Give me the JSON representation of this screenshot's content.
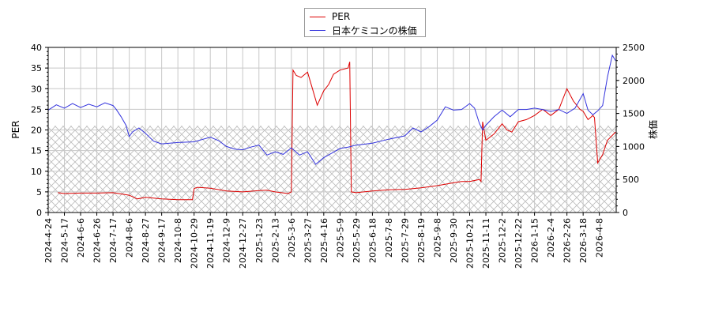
{
  "chart_data": {
    "type": "line",
    "title": "",
    "xlabel": "",
    "ylabel": "PER",
    "ylabel_right": "株価",
    "ylim": [
      0,
      40
    ],
    "ylim_right": [
      0,
      2500
    ],
    "yticks": [
      0,
      5,
      10,
      15,
      20,
      25,
      30,
      35,
      40
    ],
    "yticks_right": [
      0,
      500,
      1000,
      1500,
      2000,
      2500
    ],
    "grid": true,
    "legend_position": "top-center",
    "hatched_band": {
      "from": 0,
      "to": 21,
      "axis": "left"
    },
    "x_tick_labels": [
      "2024-4-24",
      "2024-5-17",
      "2024-6-6",
      "2024-6-26",
      "2024-7-17",
      "2024-8-6",
      "2024-8-27",
      "2024-9-17",
      "2024-10-8",
      "2024-10-29",
      "2024-11-19",
      "2024-12-9",
      "2024-12-27",
      "2025-1-23",
      "2025-2-13",
      "2025-3-6",
      "2025-3-27",
      "2025-4-16",
      "2025-5-9",
      "2025-5-29",
      "2025-6-18",
      "2025-7-8",
      "2025-7-29",
      "2025-8-19",
      "2025-9-8",
      "2025-9-30",
      "2025-10-21",
      "2025-11-11",
      "2025-12-2",
      "2025-12-22",
      "2026-1-15",
      "2026-2-4",
      "2026-2-26",
      "2026-3-18",
      "2026-4-8"
    ],
    "series": [
      {
        "name": "PER",
        "color": "#dd0000",
        "axis": "left",
        "x_index": [
          0.6,
          1,
          2,
          3,
          4,
          4.5,
          5,
          5.5,
          6,
          7,
          8,
          8.9,
          9,
          9.2,
          10,
          11,
          12,
          13,
          13.5,
          14,
          14.8,
          15,
          15.1,
          15.3,
          15.6,
          16,
          16.3,
          16.6,
          17,
          17.3,
          17.6,
          18,
          18.5,
          18.6,
          18.7,
          19,
          20,
          21,
          22,
          23,
          24,
          25,
          25.5,
          26,
          26.6,
          26.7,
          26.8,
          27,
          27.5,
          28,
          28.3,
          28.6,
          29,
          29.5,
          30,
          30.5,
          31,
          31.5,
          32,
          32.4,
          32.8,
          33,
          33.3,
          33.6,
          33.7,
          33.9,
          34.2,
          34.5,
          35
        ],
        "values": [
          4.8,
          4.6,
          4.7,
          4.7,
          4.8,
          4.5,
          4.2,
          3.3,
          3.7,
          3.3,
          3.1,
          3.1,
          5.8,
          6.1,
          5.9,
          5.2,
          5.0,
          5.3,
          5.4,
          5.0,
          4.6,
          5.0,
          34.5,
          33.2,
          32.7,
          34.0,
          30.0,
          26.0,
          29.5,
          31.0,
          33.5,
          34.5,
          35.0,
          36.5,
          5.0,
          4.8,
          5.2,
          5.5,
          5.6,
          6.0,
          6.5,
          7.2,
          7.5,
          7.5,
          8.0,
          7.5,
          22.0,
          17.5,
          19.0,
          21.5,
          20.0,
          19.5,
          22.0,
          22.5,
          23.5,
          25.0,
          23.5,
          25.0,
          30.0,
          27.0,
          25.0,
          24.5,
          22.5,
          23.5,
          23.0,
          12.0,
          14.0,
          17.5,
          19.5
        ]
      },
      {
        "name": "日本ケミコンの株価",
        "color": "#3333dd",
        "axis": "right",
        "x_index": [
          0,
          0.5,
          1,
          1.5,
          2,
          2.5,
          3,
          3.5,
          4,
          4.2,
          4.5,
          4.8,
          5,
          5.2,
          5.6,
          6,
          6.5,
          7,
          8,
          9,
          10,
          10.5,
          11,
          11.5,
          12,
          12.5,
          13,
          13.5,
          14,
          14.5,
          15,
          15.5,
          16,
          16.5,
          17,
          17.5,
          18,
          18.5,
          19,
          20,
          21,
          22,
          22.5,
          23,
          23.5,
          24,
          24.5,
          25,
          25.5,
          26,
          26.3,
          26.6,
          26.8,
          27,
          27.5,
          28,
          28.5,
          29,
          29.5,
          30,
          30.5,
          31,
          31.5,
          32,
          32.5,
          33,
          33.3,
          33.6,
          33.9,
          34.2,
          34.5,
          34.8,
          35
        ],
        "values": [
          1550,
          1630,
          1580,
          1650,
          1590,
          1640,
          1600,
          1660,
          1620,
          1560,
          1450,
          1320,
          1150,
          1220,
          1280,
          1200,
          1080,
          1040,
          1060,
          1070,
          1140,
          1090,
          1000,
          960,
          950,
          990,
          1020,
          870,
          920,
          880,
          980,
          870,
          920,
          730,
          830,
          900,
          970,
          990,
          1020,
          1050,
          1110,
          1160,
          1280,
          1220,
          1300,
          1400,
          1600,
          1550,
          1560,
          1650,
          1580,
          1350,
          1250,
          1320,
          1450,
          1550,
          1450,
          1560,
          1560,
          1580,
          1560,
          1530,
          1560,
          1500,
          1580,
          1800,
          1550,
          1480,
          1540,
          1620,
          2050,
          2380,
          2300
        ]
      }
    ]
  },
  "legend": {
    "items": [
      {
        "label": "PER",
        "color": "#dd0000"
      },
      {
        "label": "日本ケミコンの株価",
        "color": "#3333dd"
      }
    ]
  }
}
